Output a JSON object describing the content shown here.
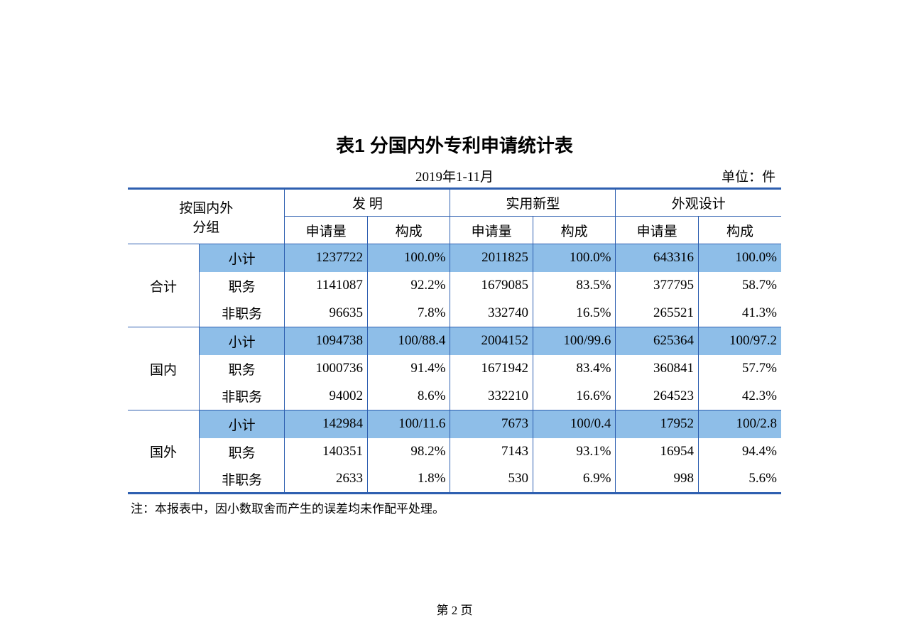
{
  "title": "表1  分国内外专利申请统计表",
  "period": "2019年1-11月",
  "unit": "单位：件",
  "group_header": "按国内外\n分组",
  "cat_headers": [
    "发    明",
    "实用新型",
    "外观设计"
  ],
  "sub_headers": [
    "申请量",
    "构成"
  ],
  "row_groups": [
    {
      "label": "合计",
      "rows": [
        {
          "label": "小计",
          "hl": true,
          "vals": [
            "1237722",
            "100.0%",
            "2011825",
            "100.0%",
            "643316",
            "100.0%"
          ]
        },
        {
          "label": "职务",
          "hl": false,
          "vals": [
            "1141087",
            "92.2%",
            "1679085",
            "83.5%",
            "377795",
            "58.7%"
          ]
        },
        {
          "label": "非职务",
          "hl": false,
          "vals": [
            "96635",
            "7.8%",
            "332740",
            "16.5%",
            "265521",
            "41.3%"
          ]
        }
      ]
    },
    {
      "label": "国内",
      "rows": [
        {
          "label": "小计",
          "hl": true,
          "vals": [
            "1094738",
            "100/88.4",
            "2004152",
            "100/99.6",
            "625364",
            "100/97.2"
          ]
        },
        {
          "label": "职务",
          "hl": false,
          "vals": [
            "1000736",
            "91.4%",
            "1671942",
            "83.4%",
            "360841",
            "57.7%"
          ]
        },
        {
          "label": "非职务",
          "hl": false,
          "vals": [
            "94002",
            "8.6%",
            "332210",
            "16.6%",
            "264523",
            "42.3%"
          ]
        }
      ]
    },
    {
      "label": "国外",
      "rows": [
        {
          "label": "小计",
          "hl": true,
          "vals": [
            "142984",
            "100/11.6",
            "7673",
            "100/0.4",
            "17952",
            "100/2.8"
          ]
        },
        {
          "label": "职务",
          "hl": false,
          "vals": [
            "140351",
            "98.2%",
            "7143",
            "93.1%",
            "16954",
            "94.4%"
          ]
        },
        {
          "label": "非职务",
          "hl": false,
          "vals": [
            "2633",
            "1.8%",
            "530",
            "6.9%",
            "998",
            "5.6%"
          ]
        }
      ]
    }
  ],
  "footnote": "注：本报表中，因小数取舍而产生的误差均未作配平处理。",
  "page_number": "第 2 页",
  "colors": {
    "border": "#2e5fb0",
    "highlight": "#8ebee8",
    "bg": "#ffffff"
  }
}
